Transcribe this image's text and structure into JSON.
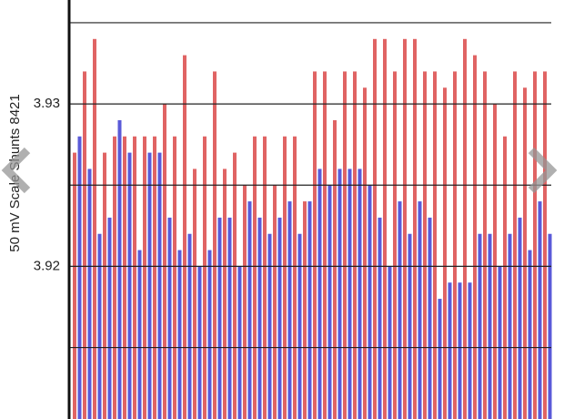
{
  "chart_data": {
    "type": "bar",
    "y_label": "50 mV Scale Shunts 8421",
    "categories": [
      null,
      null,
      null,
      null,
      null,
      null,
      null,
      null,
      null,
      null,
      null,
      null,
      null,
      null,
      null,
      null,
      null,
      null,
      null,
      null,
      null,
      null,
      null,
      null,
      null,
      null,
      null,
      null,
      null,
      null,
      null,
      null,
      null,
      null,
      null,
      null,
      null,
      null,
      null,
      null,
      null,
      null,
      null,
      null,
      null,
      null,
      null,
      null
    ],
    "series": [
      {
        "color": "#e06464",
        "values": [
          3.927,
          3.932,
          3.934,
          3.927,
          3.928,
          3.928,
          3.928,
          3.928,
          3.928,
          3.93,
          3.928,
          3.933,
          3.926,
          3.928,
          3.932,
          3.926,
          3.927,
          3.925,
          3.928,
          3.928,
          3.925,
          3.928,
          3.928,
          3.924,
          3.932,
          3.932,
          3.929,
          3.932,
          3.932,
          3.931,
          3.934,
          3.934,
          3.932,
          3.934,
          3.934,
          3.932,
          3.932,
          3.931,
          3.932,
          3.934,
          3.933,
          3.932,
          3.93,
          3.928,
          3.932,
          3.931,
          3.932,
          3.932
        ]
      },
      {
        "color": "#5a5ad8",
        "values": [
          3.928,
          3.926,
          3.922,
          3.923,
          3.929,
          3.927,
          3.921,
          3.927,
          3.927,
          3.923,
          3.921,
          3.922,
          3.92,
          3.921,
          3.923,
          3.923,
          3.92,
          3.924,
          3.923,
          3.922,
          3.923,
          3.924,
          3.922,
          3.924,
          3.926,
          3.925,
          3.926,
          3.926,
          3.926,
          3.925,
          3.923,
          3.92,
          3.924,
          3.922,
          3.924,
          3.923,
          3.918,
          3.919,
          3.919,
          3.919,
          3.922,
          3.922,
          3.92,
          3.922,
          3.923,
          3.921,
          3.924,
          3.922
        ]
      }
    ],
    "ylim": [
      3.9106,
      3.9364
    ],
    "yticks": [
      3.92,
      3.93
    ],
    "minor_grid": [
      3.915,
      3.925,
      3.935
    ],
    "grid": true
  }
}
